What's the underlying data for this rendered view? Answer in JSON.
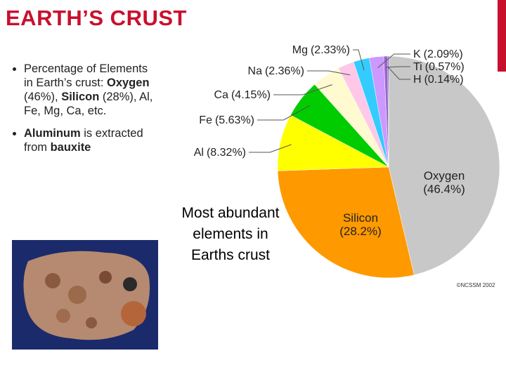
{
  "header": {
    "title": "EARTH’S CRUST"
  },
  "bullets": [
    [
      {
        "text": "Percentage of Elements in Earth’s crust: ",
        "bold": false
      },
      {
        "text": "Oxygen",
        "bold": true
      },
      {
        "text": " (46%), ",
        "bold": false
      },
      {
        "text": "Silicon",
        "bold": true
      },
      {
        "text": " (28%), Al, Fe, Mg, Ca, etc.",
        "bold": false
      }
    ],
    [
      {
        "text": "Aluminum",
        "bold": true
      },
      {
        "text": " is extracted from ",
        "bold": false
      },
      {
        "text": "bauxite",
        "bold": true
      }
    ]
  ],
  "chart_data": {
    "type": "pie",
    "title": "Most abundant elements in Earths crust",
    "credit": "©NCSSM 2002",
    "categories": [
      "Oxygen",
      "Silicon",
      "Al",
      "Fe",
      "Ca",
      "Na",
      "Mg",
      "K",
      "Ti",
      "H"
    ],
    "values": [
      46.4,
      28.2,
      8.32,
      5.63,
      4.15,
      2.36,
      2.33,
      2.09,
      0.57,
      0.14
    ],
    "value_labels": [
      "(46.4%)",
      "(28.2%)",
      "(8.32%)",
      "(5.63%)",
      "(4.15%)",
      "(2.36%)",
      "(2.33%)",
      "(2.09%)",
      "(0.57%)",
      "(0.14%)"
    ],
    "colors": [
      "#c8c8c8",
      "#ff9900",
      "#ffff00",
      "#00cc00",
      "#fffad0",
      "#ffc8e8",
      "#33ccff",
      "#cc99ff",
      "#9966cc",
      "#6633cc"
    ]
  }
}
